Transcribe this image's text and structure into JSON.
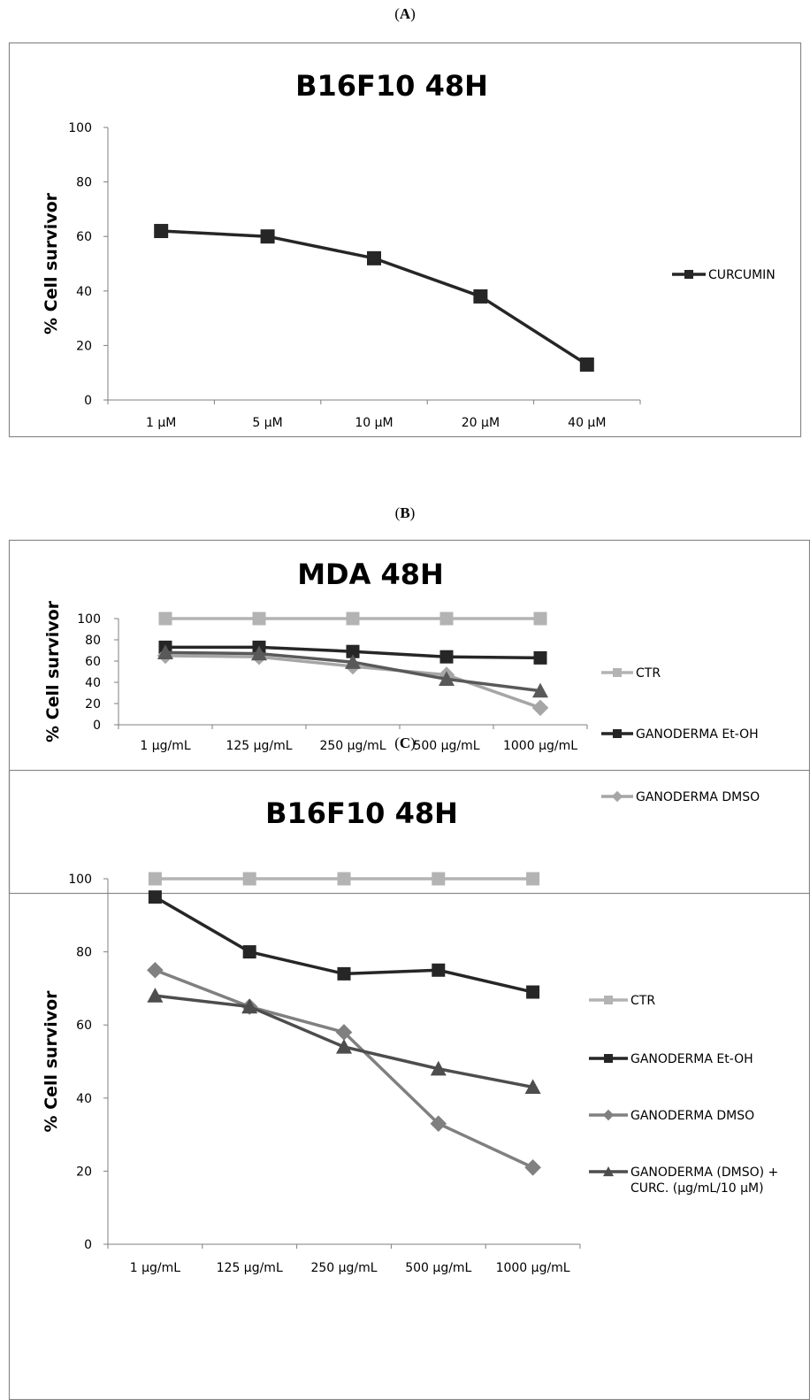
{
  "chart_data": [
    {
      "panel": "A",
      "type": "line",
      "title": "B16F10 48H",
      "xlabel": "",
      "ylabel": "% Cell survivor",
      "categories": [
        "1 µM",
        "5 µM",
        "10 µM",
        "20 µM",
        "40 µM"
      ],
      "ylim": [
        0,
        100
      ],
      "yticks": [
        0,
        20,
        40,
        60,
        80,
        100
      ],
      "grid": false,
      "legend_position": "right",
      "series": [
        {
          "name": "CURCUMIN",
          "color": "#262626",
          "marker": "square",
          "values": [
            62,
            60,
            52,
            38,
            13
          ]
        }
      ]
    },
    {
      "panel": "B",
      "type": "line",
      "title": "MDA 48H",
      "xlabel": "",
      "ylabel": "% Cell survivor",
      "categories": [
        "1 µg/mL",
        "125 µg/mL",
        "250 µg/mL",
        "500 µg/mL",
        "1000 µg/mL"
      ],
      "ylim": [
        0,
        100
      ],
      "yticks": [
        0,
        20,
        40,
        60,
        80,
        100
      ],
      "grid": false,
      "legend_position": "right",
      "series": [
        {
          "name": "CTR",
          "color": "#b3b3b3",
          "marker": "square",
          "values": [
            100,
            100,
            100,
            100,
            100
          ]
        },
        {
          "name": "GANODERMA Et-OH",
          "color": "#262626",
          "marker": "square",
          "values": [
            73,
            73,
            69,
            64,
            63
          ]
        },
        {
          "name": "GANODERMA DMSO",
          "color": "#a6a6a6",
          "marker": "diamond",
          "values": [
            65,
            64,
            55,
            47,
            16
          ]
        },
        {
          "name": "",
          "color": "#595959",
          "marker": "triangle",
          "values": [
            68,
            67,
            59,
            43,
            32
          ]
        }
      ]
    },
    {
      "panel": "C",
      "type": "line",
      "title": "B16F10 48H",
      "xlabel": "",
      "ylabel": "% Cell survivor",
      "categories": [
        "1 µg/mL",
        "125 µg/mL",
        "250 µg/mL",
        "500 µg/mL",
        "1000 µg/mL"
      ],
      "ylim": [
        0,
        100
      ],
      "yticks": [
        0,
        20,
        40,
        60,
        80,
        100
      ],
      "grid": false,
      "legend_position": "right",
      "series": [
        {
          "name": "CTR",
          "color": "#b3b3b3",
          "marker": "square",
          "values": [
            100,
            100,
            100,
            100,
            100
          ]
        },
        {
          "name": "GANODERMA Et-OH",
          "color": "#262626",
          "marker": "square",
          "values": [
            95,
            80,
            74,
            75,
            69
          ]
        },
        {
          "name": "GANODERMA DMSO",
          "color": "#808080",
          "marker": "diamond",
          "values": [
            75,
            65,
            58,
            33,
            21
          ]
        },
        {
          "name": "GANODERMA (DMSO) + CURC. (µg/mL/10 µM)",
          "legend_lines": [
            "GANODERMA (DMSO) +",
            "CURC. (µg/mL/10 µM)"
          ],
          "color": "#4d4d4d",
          "marker": "triangle",
          "values": [
            68,
            65,
            54,
            48,
            43
          ]
        }
      ]
    }
  ],
  "panel_labels": {
    "a": "A",
    "b": "B",
    "c": "C"
  }
}
